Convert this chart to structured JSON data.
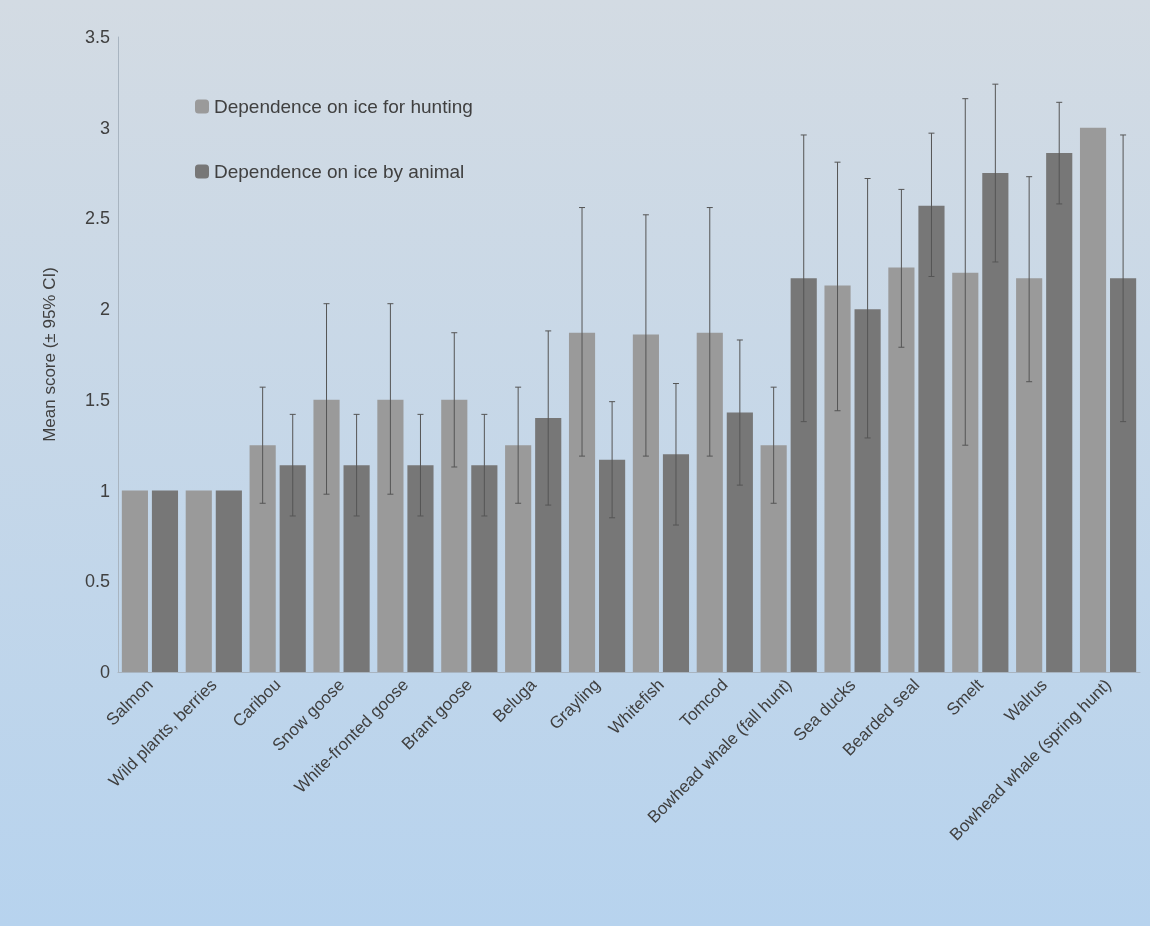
{
  "chart_data": {
    "type": "bar",
    "ylabel": "Mean score (± 95% CI)",
    "categories": [
      "Salmon",
      "Wild plants, berries",
      "Caribou",
      "Snow goose",
      "White-fronted goose",
      "Brant goose",
      "Beluga",
      "Grayling",
      "Whitefish",
      "Tomcod",
      "Bowhead whale (fall hunt)",
      "Sea ducks",
      "Bearded seal",
      "Smelt",
      "Walrus",
      "Bowhead whale (spring hunt)"
    ],
    "series": [
      {
        "name": "Dependence on ice for hunting",
        "color": "#9a9a9a",
        "values": [
          1,
          1,
          1.25,
          1.5,
          1.5,
          1.5,
          1.25,
          1.87,
          1.86,
          1.87,
          1.25,
          2.13,
          2.23,
          2.2,
          2.17,
          3
        ],
        "errors": [
          null,
          null,
          [
            0.93,
            1.57
          ],
          [
            0.98,
            2.03
          ],
          [
            0.98,
            2.03
          ],
          [
            1.13,
            1.87
          ],
          [
            0.93,
            1.57
          ],
          [
            1.19,
            2.56
          ],
          [
            1.19,
            2.52
          ],
          [
            1.19,
            2.56
          ],
          [
            0.93,
            1.57
          ],
          [
            1.44,
            2.81
          ],
          [
            1.79,
            2.66
          ],
          [
            1.25,
            3.16
          ],
          [
            1.6,
            2.73
          ],
          null
        ]
      },
      {
        "name": "Dependence on ice by animal",
        "color": "#777777",
        "values": [
          1,
          1,
          1.14,
          1.14,
          1.14,
          1.14,
          1.4,
          1.17,
          1.2,
          1.43,
          2.17,
          2,
          2.57,
          2.75,
          2.86,
          2.17
        ],
        "errors": [
          null,
          null,
          [
            0.86,
            1.42
          ],
          [
            0.86,
            1.42
          ],
          [
            0.86,
            1.42
          ],
          [
            0.86,
            1.42
          ],
          [
            0.92,
            1.88
          ],
          [
            0.85,
            1.49
          ],
          [
            0.81,
            1.59
          ],
          [
            1.03,
            1.83
          ],
          [
            1.38,
            2.96
          ],
          [
            1.29,
            2.72
          ],
          [
            2.18,
            2.97
          ],
          [
            2.26,
            3.24
          ],
          [
            2.58,
            3.14
          ],
          [
            1.38,
            2.96
          ]
        ]
      }
    ],
    "ylim": [
      0,
      3.5
    ],
    "yticks": [
      0,
      0.5,
      1,
      1.5,
      2,
      2.5,
      3,
      3.5
    ],
    "grid": false,
    "legend": "top left"
  }
}
